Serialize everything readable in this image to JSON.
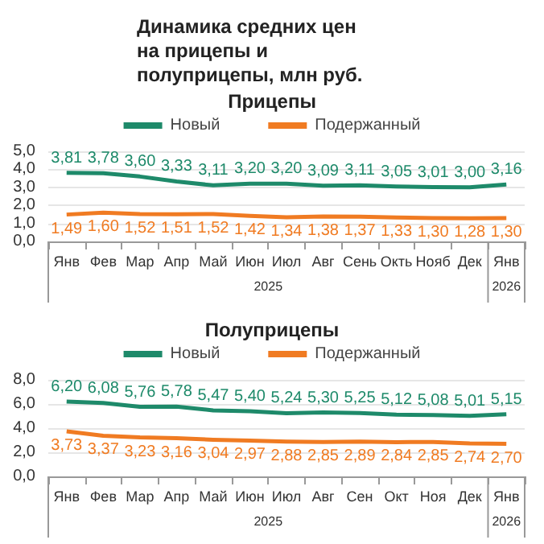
{
  "chart_data": [
    {
      "type": "line",
      "title": "Динамика средних цен на прицепы и полуприцепы, млн руб.",
      "subtitle": "Прицепы",
      "categories": [
        "Янв",
        "Фев",
        "Мар",
        "Апр",
        "Май",
        "Июн",
        "Июл",
        "Авг",
        "Сень",
        "Окть",
        "Нояб",
        "Дек",
        "Янв"
      ],
      "series": [
        {
          "name": "Новый",
          "color": "#1e8a6a",
          "values": [
            3.81,
            3.78,
            3.6,
            3.33,
            3.11,
            3.2,
            3.2,
            3.09,
            3.11,
            3.05,
            3.01,
            3.0,
            3.16
          ],
          "value_labels": [
            "3,81",
            "3,78",
            "3,60",
            "3,33",
            "3,11",
            "3,20",
            "3,20",
            "3,09",
            "3,11",
            "3,05",
            "3,01",
            "3,00",
            "3,16"
          ]
        },
        {
          "name": "Подержанный",
          "color": "#f07b22",
          "values": [
            1.49,
            1.6,
            1.52,
            1.51,
            1.52,
            1.42,
            1.34,
            1.38,
            1.37,
            1.33,
            1.3,
            1.28,
            1.3
          ],
          "value_labels": [
            "1,49",
            "1,60",
            "1,52",
            "1,51",
            "1,52",
            "1,42",
            "1,34",
            "1,38",
            "1,37",
            "1,33",
            "1,30",
            "1,28",
            "1,30"
          ]
        }
      ],
      "ylim": [
        0,
        5
      ],
      "yticks": [
        {
          "value": 0,
          "label": "0,0"
        },
        {
          "value": 1,
          "label": "1,0"
        },
        {
          "value": 2,
          "label": "2,0"
        },
        {
          "value": 3,
          "label": "3,0"
        },
        {
          "value": 4,
          "label": "4,0"
        },
        {
          "value": 5,
          "label": "5,0"
        }
      ],
      "annotations": [
        "2025",
        "2026"
      ],
      "legend": "top",
      "grid": "y",
      "marker": "none"
    },
    {
      "type": "line",
      "title": "Полуприцепы",
      "categories": [
        "Янв",
        "Фев",
        "Мар",
        "Апр",
        "Май",
        "Июн",
        "Июл",
        "Авг",
        "Сен",
        "Окт",
        "Ноя",
        "Дек",
        "Янв"
      ],
      "series": [
        {
          "name": "Новый",
          "color": "#1e8a6a",
          "values": [
            6.2,
            6.08,
            5.76,
            5.78,
            5.47,
            5.4,
            5.24,
            5.3,
            5.25,
            5.12,
            5.08,
            5.01,
            5.15
          ],
          "value_labels": [
            "6,20",
            "6,08",
            "5,76",
            "5,78",
            "5,47",
            "5,40",
            "5,24",
            "5,30",
            "5,25",
            "5,12",
            "5,08",
            "5,01",
            "5,15"
          ]
        },
        {
          "name": "Подержанный",
          "color": "#f07b22",
          "values": [
            3.73,
            3.37,
            3.23,
            3.16,
            3.04,
            2.97,
            2.88,
            2.85,
            2.89,
            2.84,
            2.85,
            2.74,
            2.7
          ],
          "value_labels": [
            "3,73",
            "3,37",
            "3,23",
            "3,16",
            "3,04",
            "2,97",
            "2,88",
            "2,85",
            "2,89",
            "2,84",
            "2,85",
            "2,74",
            "2,70"
          ]
        }
      ],
      "ylim": [
        0,
        8
      ],
      "yticks": [
        {
          "value": 0,
          "label": "0,0"
        },
        {
          "value": 2,
          "label": "2,0"
        },
        {
          "value": 4,
          "label": "4,0"
        },
        {
          "value": 6,
          "label": "6,0"
        },
        {
          "value": 8,
          "label": "8,0"
        }
      ],
      "annotations": [
        "2025",
        "2026"
      ],
      "legend": "top",
      "grid": "y",
      "marker": "none"
    }
  ]
}
